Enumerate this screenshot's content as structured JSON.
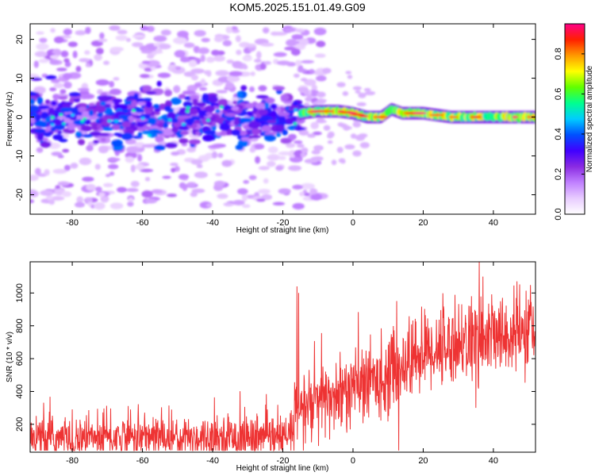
{
  "title": "KOM5.2025.151.01.49.G09",
  "colors": {
    "snr_line": "#ee3333",
    "colormap": [
      "#ffffff",
      "#e8ccff",
      "#c080ff",
      "#8a2be2",
      "#4000ff",
      "#0050ff",
      "#00ccff",
      "#00ff90",
      "#60ff00",
      "#ffff00",
      "#ff9900",
      "#ff2000",
      "#ff0088"
    ]
  },
  "chart_data": [
    {
      "type": "heatmap",
      "xlabel": "Height of straight line (km)",
      "ylabel": "Frequency (Hz)",
      "xlim": [
        -92,
        52
      ],
      "ylim": [
        -25,
        24
      ],
      "xticks": [
        -80,
        -60,
        -40,
        -20,
        0,
        20,
        40
      ],
      "yticks": [
        -20,
        -10,
        0,
        10,
        20
      ],
      "colorbar": {
        "label": "Normalized spectral amplitude",
        "range": [
          0.0,
          0.95
        ],
        "ticks": [
          0.0,
          0.2,
          0.4,
          0.6,
          0.8
        ]
      },
      "description_of_signal": {
        "noise_region_x": [
          -92,
          -15
        ],
        "noise_freq_spread_hz": 20,
        "noise_amplitude": 0.15,
        "core_band_amplitude_noise_region": 0.3,
        "signal_region_x": [
          -15,
          52
        ],
        "signal_amplitude": [
          0.5,
          0.95
        ],
        "signal_center_freq_points": [
          [
            -15,
            1
          ],
          [
            -10,
            1.5
          ],
          [
            -4,
            1.5
          ],
          [
            0,
            1
          ],
          [
            4,
            0
          ],
          [
            8,
            0
          ],
          [
            11,
            2
          ],
          [
            14,
            1
          ],
          [
            20,
            1
          ],
          [
            28,
            0
          ],
          [
            52,
            0
          ]
        ]
      }
    },
    {
      "type": "line",
      "xlabel": "Height of straight line (km)",
      "ylabel": "SNR (10 * v/v)",
      "xlim": [
        -92,
        52
      ],
      "ylim": [
        30,
        1190
      ],
      "xticks": [
        -80,
        -60,
        -40,
        -20,
        0,
        20,
        40
      ],
      "yticks": [
        200,
        400,
        600,
        800,
        1000
      ],
      "series": [
        {
          "trend_x": [
            -92,
            -60,
            -40,
            -18,
            -16,
            -10,
            0,
            10,
            20,
            30,
            40,
            52
          ],
          "trend_y": [
            110,
            125,
            120,
            115,
            280,
            330,
            420,
            500,
            640,
            700,
            730,
            760
          ],
          "noise_amplitude": 70,
          "notable_peaks": [
            [
              -16,
              1040
            ],
            [
              -15.5,
              1000
            ],
            [
              13,
              950
            ],
            [
              36,
              1190
            ],
            [
              37,
              1100
            ],
            [
              50,
              960
            ]
          ],
          "notable_dips": [
            [
              13,
              40
            ],
            [
              35,
              300
            ]
          ]
        }
      ]
    }
  ]
}
